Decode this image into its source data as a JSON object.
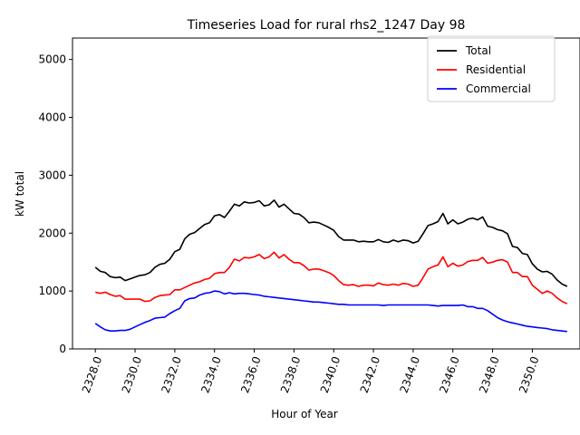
{
  "chart_data": {
    "type": "line",
    "title": "Timeseries Load for rural rhs2_1247  Day 98",
    "xlabel": "Hour of Year",
    "ylabel": "kW total",
    "xlim": [
      2326.85,
      2352.4
    ],
    "ylim": [
      0,
      5370
    ],
    "grid": false,
    "legend_position": "top-right",
    "x_ticks": [
      2328.0,
      2330.0,
      2332.0,
      2334.0,
      2336.0,
      2338.0,
      2340.0,
      2342.0,
      2344.0,
      2346.0,
      2348.0,
      2350.0
    ],
    "x_tick_labels": [
      "2328.0",
      "2330.0",
      "2332.0",
      "2334.0",
      "2336.0",
      "2338.0",
      "2340.0",
      "2342.0",
      "2344.0",
      "2346.0",
      "2348.0",
      "2350.0"
    ],
    "y_ticks": [
      0,
      1000,
      2000,
      3000,
      4000,
      5000
    ],
    "y_tick_labels": [
      "0",
      "1000",
      "2000",
      "3000",
      "4000",
      "5000"
    ],
    "x": [
      2328.0,
      2328.25,
      2328.5,
      2328.75,
      2329.0,
      2329.25,
      2329.5,
      2329.75,
      2330.0,
      2330.25,
      2330.5,
      2330.75,
      2331.0,
      2331.25,
      2331.5,
      2331.75,
      2332.0,
      2332.25,
      2332.5,
      2332.75,
      2333.0,
      2333.25,
      2333.5,
      2333.75,
      2334.0,
      2334.25,
      2334.5,
      2334.75,
      2335.0,
      2335.25,
      2335.5,
      2335.75,
      2336.0,
      2336.25,
      2336.5,
      2336.75,
      2337.0,
      2337.25,
      2337.5,
      2337.75,
      2338.0,
      2338.25,
      2338.5,
      2338.75,
      2339.0,
      2339.25,
      2339.5,
      2339.75,
      2340.0,
      2340.25,
      2340.5,
      2340.75,
      2341.0,
      2341.25,
      2341.5,
      2341.75,
      2342.0,
      2342.25,
      2342.5,
      2342.75,
      2343.0,
      2343.25,
      2343.5,
      2343.75,
      2344.0,
      2344.25,
      2344.5,
      2344.75,
      2345.0,
      2345.25,
      2345.5,
      2345.75,
      2346.0,
      2346.25,
      2346.5,
      2346.75,
      2347.0,
      2347.25,
      2347.5,
      2347.75,
      2348.0,
      2348.25,
      2348.5,
      2348.75,
      2349.0,
      2349.25,
      2349.5,
      2349.75,
      2350.0,
      2350.25,
      2350.5,
      2350.75,
      2351.0,
      2351.25,
      2351.5,
      2351.75
    ],
    "series": [
      {
        "name": "Total",
        "color": "#000000",
        "values": [
          1410,
          1340,
          1320,
          1250,
          1230,
          1240,
          1180,
          1210,
          1240,
          1270,
          1280,
          1320,
          1410,
          1460,
          1480,
          1550,
          1680,
          1720,
          1900,
          1980,
          2010,
          2080,
          2150,
          2180,
          2300,
          2320,
          2270,
          2380,
          2500,
          2470,
          2540,
          2520,
          2530,
          2560,
          2470,
          2490,
          2570,
          2450,
          2500,
          2420,
          2340,
          2330,
          2270,
          2180,
          2190,
          2180,
          2140,
          2100,
          2050,
          1940,
          1880,
          1880,
          1880,
          1850,
          1860,
          1850,
          1850,
          1890,
          1850,
          1840,
          1880,
          1850,
          1880,
          1870,
          1830,
          1860,
          1990,
          2130,
          2160,
          2200,
          2340,
          2160,
          2230,
          2160,
          2190,
          2240,
          2260,
          2230,
          2280,
          2120,
          2100,
          2060,
          2040,
          1990,
          1770,
          1750,
          1650,
          1630,
          1470,
          1380,
          1330,
          1340,
          1290,
          1190,
          1120,
          1080
        ]
      },
      {
        "name": "Residential",
        "color": "#ff0000",
        "values": [
          980,
          960,
          980,
          940,
          910,
          920,
          860,
          860,
          860,
          860,
          820,
          830,
          890,
          920,
          930,
          940,
          1020,
          1020,
          1060,
          1100,
          1140,
          1160,
          1200,
          1220,
          1300,
          1320,
          1320,
          1410,
          1550,
          1520,
          1580,
          1570,
          1590,
          1630,
          1560,
          1590,
          1670,
          1570,
          1630,
          1550,
          1490,
          1490,
          1440,
          1360,
          1380,
          1380,
          1350,
          1320,
          1270,
          1180,
          1110,
          1100,
          1110,
          1080,
          1100,
          1100,
          1090,
          1140,
          1110,
          1100,
          1120,
          1100,
          1130,
          1120,
          1080,
          1100,
          1230,
          1380,
          1420,
          1450,
          1590,
          1420,
          1480,
          1430,
          1450,
          1510,
          1530,
          1530,
          1580,
          1480,
          1500,
          1530,
          1540,
          1500,
          1320,
          1320,
          1250,
          1250,
          1100,
          1030,
          960,
          1000,
          960,
          880,
          820,
          780
        ]
      },
      {
        "name": "Commercial",
        "color": "#0000ff",
        "values": [
          440,
          380,
          330,
          310,
          310,
          320,
          320,
          340,
          380,
          420,
          460,
          490,
          530,
          540,
          550,
          610,
          660,
          700,
          830,
          870,
          880,
          930,
          960,
          970,
          1000,
          990,
          950,
          970,
          950,
          960,
          960,
          950,
          940,
          930,
          910,
          900,
          890,
          880,
          870,
          860,
          850,
          840,
          830,
          820,
          810,
          810,
          800,
          790,
          780,
          770,
          770,
          760,
          760,
          760,
          760,
          760,
          760,
          760,
          750,
          760,
          760,
          760,
          760,
          760,
          760,
          760,
          760,
          760,
          750,
          740,
          750,
          750,
          750,
          750,
          760,
          730,
          730,
          700,
          700,
          660,
          600,
          540,
          500,
          470,
          450,
          430,
          410,
          390,
          380,
          370,
          360,
          350,
          330,
          320,
          310,
          300
        ]
      }
    ]
  }
}
